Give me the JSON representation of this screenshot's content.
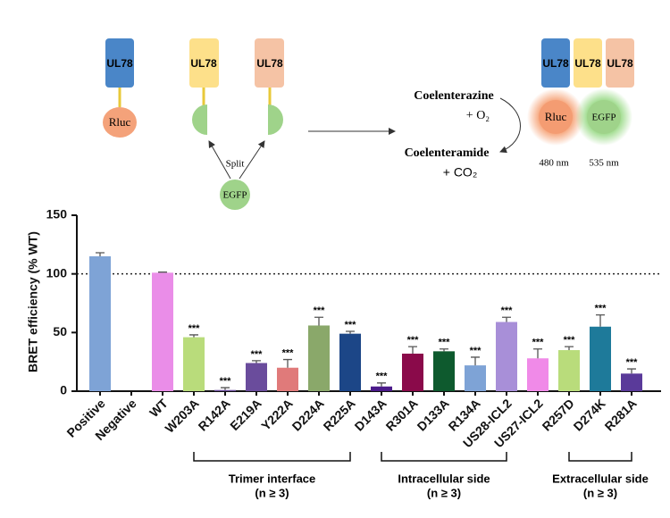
{
  "diagram": {
    "left_labels": {
      "ul78_a": "UL78",
      "ul78_b": "UL78",
      "ul78_c": "UL78",
      "rluc": "Rluc",
      "split": "Split",
      "egfp": "EGFP"
    },
    "reaction": {
      "substrate": "Coelenterazine",
      "substrate_add": "+ O₂",
      "product": "Coelenteramide",
      "product_add": "+ CO₂"
    },
    "right_labels": {
      "ul78_a": "UL78",
      "ul78_b": "UL78",
      "ul78_c": "UL78",
      "rluc": "Rluc",
      "egfp": "EGFP",
      "rluc_nm": "480 nm",
      "egfp_nm": "535 nm"
    }
  },
  "chart_data": {
    "type": "bar",
    "ylabel": "BRET efficiency (% WT)",
    "categories": [
      "Positive",
      "Negative",
      "WT",
      "W203A",
      "R142A",
      "E219A",
      "Y222A",
      "D224A",
      "R225A",
      "D143A",
      "R301A",
      "D133A",
      "R134A",
      "US28-ICL2",
      "US27-ICL2",
      "R257D",
      "D274K",
      "R281A"
    ],
    "values": [
      115,
      0,
      101,
      46,
      1,
      24,
      20,
      56,
      49,
      4,
      32,
      34,
      22,
      59,
      28,
      35,
      55,
      15
    ],
    "errors": [
      3,
      null,
      0.5,
      2,
      2,
      2,
      7,
      7,
      2,
      3,
      6,
      2,
      7,
      4,
      8,
      3,
      10,
      4
    ],
    "colors": [
      "#7ea3d6",
      "#7ea3d6",
      "#ea8de8",
      "#b9dc7b",
      "#6a4c9c",
      "#6a4c9c",
      "#e07a7a",
      "#8aa86a",
      "#1c4687",
      "#4b1a8a",
      "#8a0a4a",
      "#0e5a2e",
      "#7ea3d6",
      "#a88fd8",
      "#f08ae8",
      "#b9dc7b",
      "#1e7a9a",
      "#5a3a9a"
    ],
    "annotations": [
      null,
      null,
      null,
      "***",
      "***",
      "***",
      "***",
      "***",
      "***",
      "***",
      "***",
      "***",
      "***",
      "***",
      "***",
      "***",
      "***",
      "***"
    ],
    "reference_line": 100,
    "ylim": [
      0,
      150
    ],
    "yticks": [
      0,
      50,
      100,
      150
    ],
    "groups": [
      {
        "label": "Trimer interface",
        "note": "(n ≥ 3)",
        "first": "W203A",
        "last": "R225A"
      },
      {
        "label": "Intracellular side",
        "note": "(n ≥ 3)",
        "first": "D143A",
        "last": "US28-ICL2"
      },
      {
        "label": "Extracellular side",
        "note": "(n ≥ 3)",
        "first": "R257D",
        "last": "R281A"
      }
    ]
  }
}
